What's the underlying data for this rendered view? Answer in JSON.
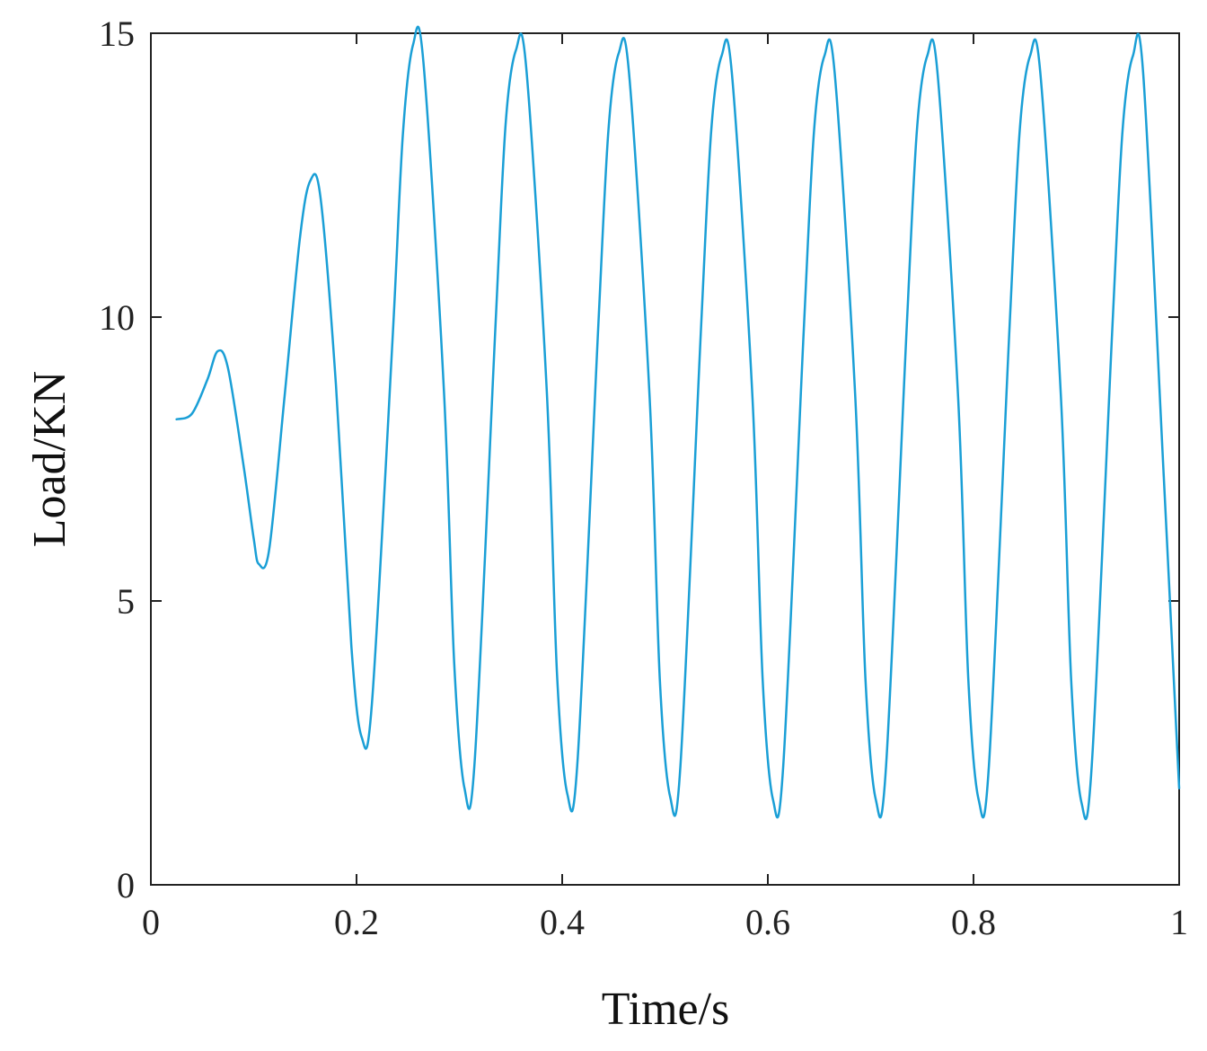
{
  "chart_data": {
    "type": "line",
    "title": "",
    "xlabel": "Time/s",
    "ylabel": "Load/KN",
    "xlim": [
      0,
      1
    ],
    "ylim": [
      0,
      15
    ],
    "xticks": [
      0,
      0.2,
      0.4,
      0.6,
      0.8,
      1
    ],
    "xtick_labels": [
      "0",
      "0.2",
      "0.4",
      "0.6",
      "0.8",
      "1"
    ],
    "yticks": [
      0,
      5,
      10,
      15
    ],
    "ytick_labels": [
      "0",
      "5",
      "10",
      "15"
    ],
    "grid": false,
    "legend": "none",
    "series_color": "#1a9fd6",
    "series": [
      {
        "x": [
          0.025,
          0.04,
          0.055,
          0.065,
          0.075,
          0.09,
          0.1,
          0.105,
          0.115,
          0.13,
          0.145,
          0.155,
          0.165,
          0.18,
          0.195,
          0.205,
          0.215,
          0.235,
          0.245,
          0.255,
          0.265,
          0.285,
          0.295,
          0.305,
          0.315,
          0.335,
          0.345,
          0.355,
          0.365,
          0.385,
          0.395,
          0.405,
          0.415,
          0.435,
          0.445,
          0.455,
          0.465,
          0.485,
          0.495,
          0.505,
          0.515,
          0.535,
          0.545,
          0.555,
          0.565,
          0.585,
          0.595,
          0.605,
          0.615,
          0.635,
          0.645,
          0.655,
          0.665,
          0.685,
          0.695,
          0.705,
          0.715,
          0.735,
          0.745,
          0.755,
          0.765,
          0.785,
          0.795,
          0.805,
          0.815,
          0.835,
          0.845,
          0.855,
          0.865,
          0.885,
          0.895,
          0.905,
          0.915,
          0.935,
          0.945,
          0.955,
          0.965,
          0.985,
          1.0
        ],
        "y": [
          8.2,
          8.3,
          8.9,
          9.4,
          9.1,
          7.4,
          6.1,
          5.65,
          5.9,
          8.6,
          11.4,
          12.4,
          12.1,
          8.8,
          4.2,
          2.6,
          3.2,
          9.6,
          13.2,
          14.8,
          14.5,
          8.7,
          3.9,
          1.7,
          2.2,
          9.8,
          13.4,
          14.7,
          14.4,
          8.7,
          3.7,
          1.6,
          2.2,
          9.8,
          13.3,
          14.65,
          14.3,
          8.6,
          3.6,
          1.55,
          2.1,
          9.8,
          13.3,
          14.6,
          14.3,
          8.6,
          3.6,
          1.5,
          2.1,
          9.8,
          13.3,
          14.6,
          14.3,
          8.6,
          3.6,
          1.5,
          2.1,
          9.8,
          13.3,
          14.6,
          14.3,
          8.6,
          3.6,
          1.5,
          2.1,
          9.8,
          13.3,
          14.6,
          14.3,
          8.6,
          3.6,
          1.45,
          2.1,
          9.8,
          13.3,
          14.6,
          14.3,
          7.2,
          1.7
        ]
      }
    ]
  }
}
